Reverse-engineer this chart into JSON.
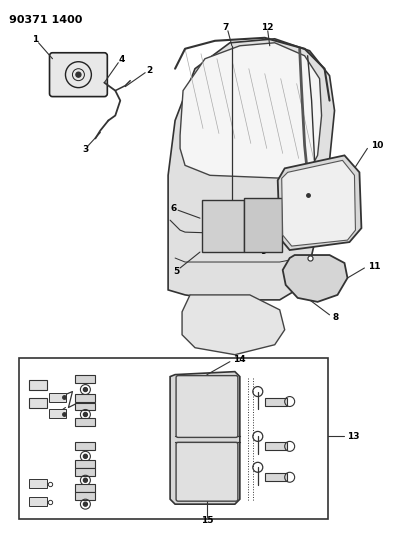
{
  "title": "90371 1400",
  "bg_color": "#ffffff",
  "lc": "#333333",
  "fig_width": 3.97,
  "fig_height": 5.33,
  "dpi": 100
}
